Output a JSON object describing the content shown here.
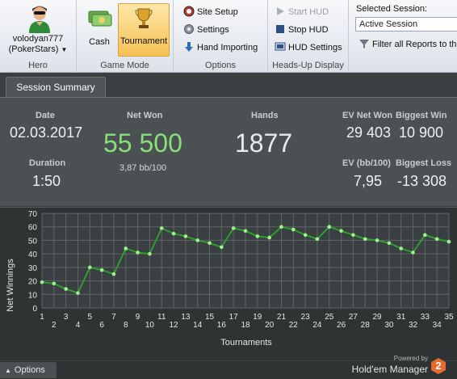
{
  "ribbon": {
    "hero": {
      "name": "volodyan777",
      "site": "(PokerStars)",
      "group_label": "Hero"
    },
    "game_mode": {
      "cash_label": "Cash",
      "tournament_label": "Tournament",
      "group_label": "Game Mode"
    },
    "options": {
      "site_setup": "Site Setup",
      "settings": "Settings",
      "hand_importing": "Hand Importing",
      "group_label": "Options"
    },
    "hud": {
      "start_hud": "Start HUD",
      "stop_hud": "Stop HUD",
      "hud_settings": "HUD Settings",
      "group_label": "Heads-Up Display"
    },
    "session": {
      "label": "Selected Session:",
      "selected": "Active Session",
      "filter_label": "Filter all Reports to th"
    }
  },
  "tab": {
    "label": "Session Summary"
  },
  "summary": {
    "date_label": "Date",
    "date": "02.03.2017",
    "duration_label": "Duration",
    "duration": "1:50",
    "net_won_label": "Net Won",
    "net_won": "55 500",
    "bb_per_100": "3,87 bb/100",
    "hands_label": "Hands",
    "hands": "1877",
    "ev_net_won_label": "EV Net Won",
    "ev_net_won": "29 403",
    "ev_bb_label": "EV (bb/100)",
    "ev_bb": "7,95",
    "biggest_win_label": "Biggest Win",
    "biggest_win": "10 900",
    "biggest_loss_label": "Biggest Loss",
    "biggest_loss": "-13 308"
  },
  "chart_data": {
    "type": "line",
    "xlabel": "Tournaments",
    "ylabel": "Net Winnings",
    "ylim": [
      0,
      70
    ],
    "yticks": [
      0,
      10,
      20,
      30,
      40,
      50,
      60,
      70
    ],
    "xlim": [
      1,
      35
    ],
    "x": [
      1,
      2,
      3,
      4,
      5,
      6,
      7,
      8,
      9,
      10,
      11,
      12,
      13,
      14,
      15,
      16,
      17,
      18,
      19,
      20,
      21,
      22,
      23,
      24,
      25,
      26,
      27,
      28,
      29,
      30,
      31,
      32,
      33,
      34,
      35
    ],
    "series": [
      {
        "values": [
          19,
          18,
          14,
          11,
          30,
          28,
          25,
          44,
          41,
          40,
          59,
          55,
          53,
          50,
          48,
          45,
          59,
          57,
          53,
          52,
          60,
          58,
          54,
          51,
          60,
          57,
          54,
          51,
          50,
          48,
          44,
          41,
          54,
          51,
          49
        ]
      }
    ],
    "grid": true,
    "line_color": "#2f9e2f",
    "marker_color": "#9ff08f"
  },
  "footer": {
    "options_label": "Options",
    "powered_by": "Powered by",
    "brand": "Hold'em Manager",
    "brand_version": "2"
  }
}
